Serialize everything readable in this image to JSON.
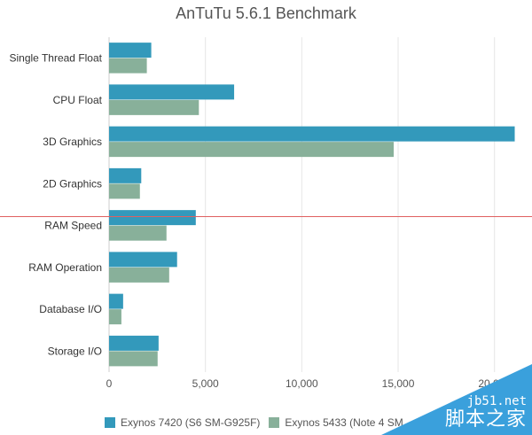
{
  "chart_data": {
    "type": "bar",
    "orientation": "horizontal",
    "title": "AnTuTu 5.6.1 Benchmark",
    "xlabel": "",
    "ylabel": "",
    "categories": [
      "Single Thread Float",
      "CPU Float",
      "3D Graphics",
      "2D Graphics",
      "RAM Speed",
      "RAM Operation",
      "Database I/O",
      "Storage I/O"
    ],
    "series": [
      {
        "name": "Exynos 7420 (S6 SM-G925F)",
        "color": "#3399bb",
        "values": [
          2190,
          6490,
          21050,
          1670,
          4500,
          3530,
          730,
          2570
        ]
      },
      {
        "name": "Exynos 5433 (Note 4 SM",
        "color": "#88b09a",
        "values": [
          1960,
          4660,
          14770,
          1600,
          2980,
          3120,
          640,
          2520
        ]
      }
    ],
    "xlim": [
      0,
      22000
    ],
    "xticks": [
      0,
      5000,
      10000,
      15000,
      20000
    ],
    "xtick_labels": [
      "0",
      "5,000",
      "10,000",
      "15,000",
      "20,000"
    ],
    "grid": true,
    "legend_position": "bottom"
  },
  "watermark": {
    "line1": "jb51.net",
    "line2": "脚本之家"
  }
}
